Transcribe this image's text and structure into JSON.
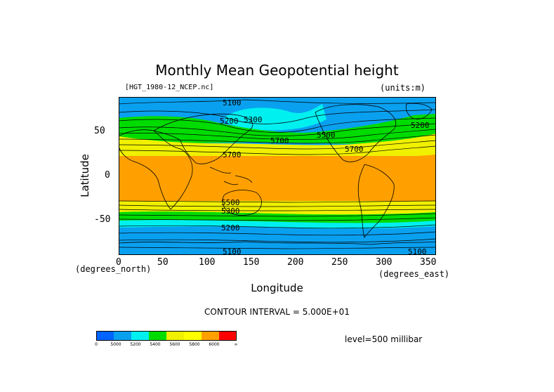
{
  "title": "Monthly Mean Geopotential height",
  "file_label": "[HGT_1980-12_NCEP.nc]",
  "units_label": "(units:m)",
  "y_axis": {
    "label": "Latitude",
    "unit": "(degrees_north)",
    "ticks": [
      "50",
      "0",
      "-50"
    ]
  },
  "x_axis": {
    "label": "Longitude",
    "unit": "(degrees_east)",
    "ticks": [
      "0",
      "50",
      "100",
      "150",
      "200",
      "250",
      "300",
      "350"
    ]
  },
  "contour_interval_text": "CONTOUR INTERVAL = 5.000E+01",
  "level_text": "level=500 millibar",
  "contour_labels": [
    "5100",
    "5200",
    "5300",
    "5500",
    "5700",
    "5500",
    "5300",
    "5200",
    "5700",
    "5700",
    "5200",
    "5100",
    "5100"
  ],
  "colorbar": {
    "colors": [
      "#0064ff",
      "#0aa0f0",
      "#00f0f0",
      "#00dc00",
      "#f0f000",
      "#ffff00",
      "#ffa000",
      "#ff0000"
    ],
    "tick_labels": [
      "0",
      "5000",
      "5200",
      "5400",
      "5600",
      "5800",
      "6000",
      "∞"
    ]
  },
  "chart_data": {
    "type": "heatmap",
    "title": "Monthly Mean Geopotential height",
    "xlabel": "Longitude",
    "ylabel": "Latitude",
    "xlim": [
      0,
      360
    ],
    "ylim": [
      -90,
      90
    ],
    "x_ticks": [
      0,
      50,
      100,
      150,
      200,
      250,
      300,
      350
    ],
    "y_ticks": [
      -50,
      0,
      50
    ],
    "level": "500 millibar",
    "units": "m",
    "contour_interval": 50,
    "color_levels": [
      0,
      5000,
      5200,
      5400,
      5600,
      5800,
      6000
    ],
    "zonal_bands": [
      {
        "lat_range": [
          70,
          90
        ],
        "value_range": [
          5000,
          5200
        ]
      },
      {
        "lat_range": [
          45,
          70
        ],
        "value_range": [
          5200,
          5600
        ]
      },
      {
        "lat_range": [
          28,
          45
        ],
        "value_range": [
          5600,
          5800
        ]
      },
      {
        "lat_range": [
          -28,
          28
        ],
        "value_range": [
          5800,
          6000
        ]
      },
      {
        "lat_range": [
          -45,
          -28
        ],
        "value_range": [
          5600,
          5800
        ]
      },
      {
        "lat_range": [
          -55,
          -45
        ],
        "value_range": [
          5400,
          5600
        ]
      },
      {
        "lat_range": [
          -90,
          -55
        ],
        "value_range": [
          5000,
          5400
        ]
      }
    ]
  }
}
